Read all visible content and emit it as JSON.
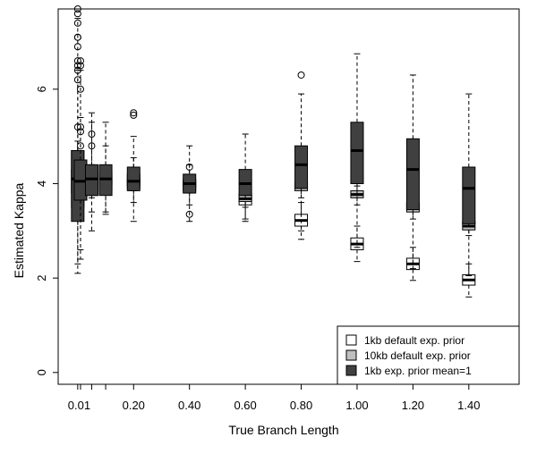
{
  "chart_data": {
    "type": "boxplot",
    "title": "",
    "xlabel": "True Branch Length",
    "ylabel": "Estimated Kappa",
    "ylim": [
      -0.25,
      7.7
    ],
    "xlim": [
      -0.07,
      1.58
    ],
    "y_ticks": [
      0,
      2,
      4,
      6
    ],
    "x_ticks": [
      0.0,
      0.01,
      0.05,
      0.1,
      0.2,
      0.4,
      0.6,
      0.8,
      1.0,
      1.2,
      1.4
    ],
    "x_tick_labels": [
      {
        "x": 0.005,
        "label": "0.01"
      },
      {
        "x": 0.2,
        "label": "0.20"
      },
      {
        "x": 0.4,
        "label": "0.40"
      },
      {
        "x": 0.6,
        "label": "0.60"
      },
      {
        "x": 0.8,
        "label": "0.80"
      },
      {
        "x": 1.0,
        "label": "1.00"
      },
      {
        "x": 1.2,
        "label": "1.20"
      },
      {
        "x": 1.4,
        "label": "1.40"
      }
    ],
    "legend": {
      "position": "bottom-right",
      "entries": [
        {
          "name": "1kb default exp. prior",
          "color": "#ffffff"
        },
        {
          "name": "10kb default exp. prior",
          "color": "#bfbfbf"
        },
        {
          "name": "1kb exp. prior mean=1",
          "color": "#404040"
        }
      ]
    },
    "series": [
      {
        "name": "1kb default exp. prior",
        "color": "#ffffff",
        "boxes": [
          {
            "x": 0.0,
            "wl": 2.3,
            "q1": 3.5,
            "med": 4.05,
            "q3": 4.7,
            "wh": 7.5,
            "outliers": [
              7.7,
              7.6,
              7.4,
              7.1,
              6.9
            ]
          },
          {
            "x": 0.01,
            "wl": 2.6,
            "q1": 3.65,
            "med": 4.05,
            "q3": 4.5,
            "wh": 6.4,
            "outliers": [
              6.6,
              6.5,
              6.0,
              5.2
            ]
          },
          {
            "x": 0.05,
            "wl": 3.0,
            "q1": 3.75,
            "med": 4.05,
            "q3": 4.35,
            "wh": 5.5,
            "outliers": [
              5.05,
              4.8
            ]
          },
          {
            "x": 0.1,
            "wl": 3.35,
            "q1": 3.85,
            "med": 4.05,
            "q3": 4.25,
            "wh": 4.8,
            "outliers": []
          },
          {
            "x": 0.2,
            "wl": 3.6,
            "q1": 3.9,
            "med": 4.05,
            "q3": 4.2,
            "wh": 4.55,
            "outliers": []
          },
          {
            "x": 0.4,
            "wl": 3.55,
            "q1": 3.85,
            "med": 4.0,
            "q3": 4.1,
            "wh": 4.4,
            "outliers": []
          },
          {
            "x": 0.6,
            "wl": 3.25,
            "q1": 3.55,
            "med": 3.65,
            "q3": 3.78,
            "wh": 4.0,
            "outliers": []
          },
          {
            "x": 0.8,
            "wl": 2.82,
            "q1": 3.1,
            "med": 3.22,
            "q3": 3.35,
            "wh": 3.6,
            "outliers": []
          },
          {
            "x": 1.0,
            "wl": 2.35,
            "q1": 2.6,
            "med": 2.72,
            "q3": 2.85,
            "wh": 3.1,
            "outliers": []
          },
          {
            "x": 1.2,
            "wl": 1.95,
            "q1": 2.18,
            "med": 2.3,
            "q3": 2.42,
            "wh": 2.65,
            "outliers": []
          },
          {
            "x": 1.4,
            "wl": 1.6,
            "q1": 1.85,
            "med": 1.96,
            "q3": 2.07,
            "wh": 2.3,
            "outliers": []
          }
        ]
      },
      {
        "name": "10kb default exp. prior",
        "color": "#bfbfbf",
        "boxes": [
          {
            "x": 0.0,
            "wl": 3.3,
            "q1": 3.8,
            "med": 4.05,
            "q3": 4.3,
            "wh": 4.9,
            "outliers": []
          },
          {
            "x": 0.01,
            "wl": 3.5,
            "q1": 3.9,
            "med": 4.05,
            "q3": 4.2,
            "wh": 4.6,
            "outliers": []
          },
          {
            "x": 0.05,
            "wl": 3.7,
            "q1": 3.95,
            "med": 4.05,
            "q3": 4.15,
            "wh": 4.4,
            "outliers": []
          },
          {
            "x": 0.1,
            "wl": 3.8,
            "q1": 3.97,
            "med": 4.05,
            "q3": 4.12,
            "wh": 4.3,
            "outliers": []
          },
          {
            "x": 0.2,
            "wl": 3.85,
            "q1": 3.97,
            "med": 4.03,
            "q3": 4.1,
            "wh": 4.2,
            "outliers": []
          },
          {
            "x": 0.4,
            "wl": 3.8,
            "q1": 3.93,
            "med": 3.99,
            "q3": 4.05,
            "wh": 4.15,
            "outliers": []
          },
          {
            "x": 0.6,
            "wl": 3.5,
            "q1": 3.62,
            "med": 3.68,
            "q3": 3.75,
            "wh": 3.85,
            "outliers": []
          },
          {
            "x": 0.8,
            "wl": 3.7,
            "q1": 3.85,
            "med": 3.92,
            "q3": 4.02,
            "wh": 4.1,
            "outliers": []
          },
          {
            "x": 1.0,
            "wl": 3.55,
            "q1": 3.7,
            "med": 3.77,
            "q3": 3.85,
            "wh": 3.95,
            "outliers": []
          },
          {
            "x": 1.2,
            "wl": 3.25,
            "q1": 3.4,
            "med": 3.48,
            "q3": 3.6,
            "wh": 3.7,
            "outliers": []
          },
          {
            "x": 1.4,
            "wl": 2.9,
            "q1": 3.02,
            "med": 3.1,
            "q3": 3.2,
            "wh": 3.3,
            "outliers": []
          }
        ]
      },
      {
        "name": "1kb exp. prior mean=1",
        "color": "#404040",
        "boxes": [
          {
            "x": 0.0,
            "wl": 2.1,
            "q1": 3.2,
            "med": 4.1,
            "q3": 4.7,
            "wh": 6.4,
            "outliers": [
              7.1,
              6.6,
              6.5,
              6.4,
              6.2,
              5.2
            ]
          },
          {
            "x": 0.01,
            "wl": 2.4,
            "q1": 3.65,
            "med": 4.05,
            "q3": 4.5,
            "wh": 5.4,
            "outliers": [
              5.1,
              4.8
            ]
          },
          {
            "x": 0.05,
            "wl": 3.4,
            "q1": 3.75,
            "med": 4.1,
            "q3": 4.4,
            "wh": 5.3,
            "outliers": []
          },
          {
            "x": 0.1,
            "wl": 3.4,
            "q1": 3.75,
            "med": 4.1,
            "q3": 4.4,
            "wh": 5.3,
            "outliers": []
          },
          {
            "x": 0.2,
            "wl": 3.2,
            "q1": 3.85,
            "med": 4.05,
            "q3": 4.35,
            "wh": 5.0,
            "outliers": [
              5.45,
              5.5
            ]
          },
          {
            "x": 0.4,
            "wl": 3.2,
            "q1": 3.8,
            "med": 4.0,
            "q3": 4.2,
            "wh": 4.8,
            "outliers": [
              4.35,
              3.35
            ]
          },
          {
            "x": 0.6,
            "wl": 3.2,
            "q1": 3.75,
            "med": 4.0,
            "q3": 4.3,
            "wh": 5.05,
            "outliers": []
          },
          {
            "x": 0.8,
            "wl": 3.0,
            "q1": 3.9,
            "med": 4.4,
            "q3": 4.8,
            "wh": 5.9,
            "outliers": [
              6.3
            ]
          },
          {
            "x": 1.0,
            "wl": 2.65,
            "q1": 4.0,
            "med": 4.7,
            "q3": 5.3,
            "wh": 6.75,
            "outliers": []
          },
          {
            "x": 1.2,
            "wl": 2.2,
            "q1": 3.45,
            "med": 4.3,
            "q3": 4.95,
            "wh": 6.3,
            "outliers": []
          },
          {
            "x": 1.4,
            "wl": 2.05,
            "q1": 3.15,
            "med": 3.9,
            "q3": 4.35,
            "wh": 5.9,
            "outliers": []
          }
        ]
      }
    ]
  }
}
